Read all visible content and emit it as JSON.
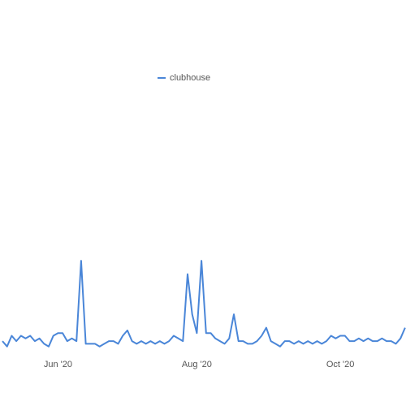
{
  "chart_data": {
    "type": "line",
    "categories": [
      null,
      null,
      null,
      null,
      null,
      null,
      null,
      null,
      null,
      null,
      null,
      null,
      "Jun '20",
      null,
      null,
      null,
      null,
      null,
      null,
      null,
      null,
      null,
      null,
      null,
      null,
      null,
      null,
      null,
      null,
      null,
      null,
      null,
      null,
      null,
      null,
      null,
      null,
      null,
      null,
      null,
      null,
      null,
      "Aug '20",
      null,
      null,
      null,
      null,
      null,
      null,
      null,
      null,
      null,
      null,
      null,
      null,
      null,
      null,
      null,
      null,
      null,
      null,
      null,
      null,
      null,
      null,
      null,
      null,
      null,
      null,
      null,
      null,
      null,
      null,
      "Oct '20",
      null,
      null,
      null,
      null,
      null,
      null,
      null,
      null,
      null,
      null,
      null,
      null,
      null,
      null
    ],
    "series": [
      {
        "name": "clubhouse",
        "color": "#4a86d8",
        "values": [
          3,
          1,
          5,
          3,
          5,
          4,
          5,
          3,
          4,
          2,
          1,
          5,
          6,
          6,
          3,
          4,
          3,
          33,
          2,
          2,
          2,
          1,
          2,
          3,
          3,
          2,
          5,
          7,
          3,
          2,
          3,
          2,
          3,
          2,
          3,
          2,
          3,
          5,
          4,
          3,
          28,
          13,
          6,
          33,
          6,
          6,
          4,
          3,
          2,
          4,
          13,
          3,
          3,
          2,
          2,
          3,
          5,
          8,
          3,
          2,
          1,
          3,
          3,
          2,
          3,
          2,
          3,
          2,
          3,
          2,
          3,
          5,
          4,
          5,
          5,
          3,
          3,
          4,
          3,
          4,
          3,
          3,
          4,
          3,
          3,
          2,
          4,
          8
        ]
      }
    ],
    "ylim": [
      0,
      100
    ]
  }
}
